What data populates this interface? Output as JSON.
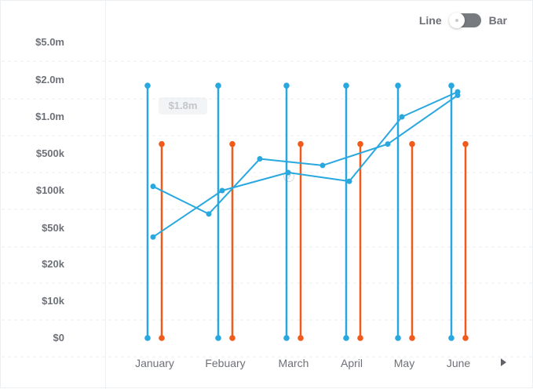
{
  "toggle": {
    "line_label": "Line",
    "bar_label": "Bar"
  },
  "tooltip": {
    "value": "$1.8m"
  },
  "help": {
    "text": "?"
  },
  "navigation": {
    "next_icon": "triangle-right"
  },
  "chart_data": {
    "type": "bar",
    "categories": [
      "January",
      "Febuary",
      "March",
      "April",
      "May",
      "June"
    ],
    "y_ticks": [
      "$5.0m",
      "$2.0m",
      "$1.0m",
      "$500k",
      "$100k",
      "$50k",
      "$20k",
      "$10k",
      "$0"
    ],
    "series": [
      {
        "color": "#29a8e0",
        "values": [
          1800000,
          1800000,
          1800000,
          1800000,
          1800000,
          1800000
        ]
      },
      {
        "color": "#f05a1a",
        "values": [
          600000,
          600000,
          600000,
          600000,
          600000,
          600000
        ]
      }
    ],
    "overlay_lines": [
      {
        "color": "#29a8e0",
        "x": [
          "January",
          "Febuary",
          "March",
          "April",
          "May",
          "June"
        ],
        "y": [
          40000,
          100000,
          220000,
          150000,
          1000000,
          1600000
        ]
      },
      {
        "color": "#29a8e0",
        "x": [
          "January",
          "Febuary",
          "March",
          "April",
          "May",
          "June"
        ],
        "y": [
          120000,
          65000,
          400000,
          300000,
          600000,
          1500000
        ]
      }
    ],
    "grid": true
  }
}
